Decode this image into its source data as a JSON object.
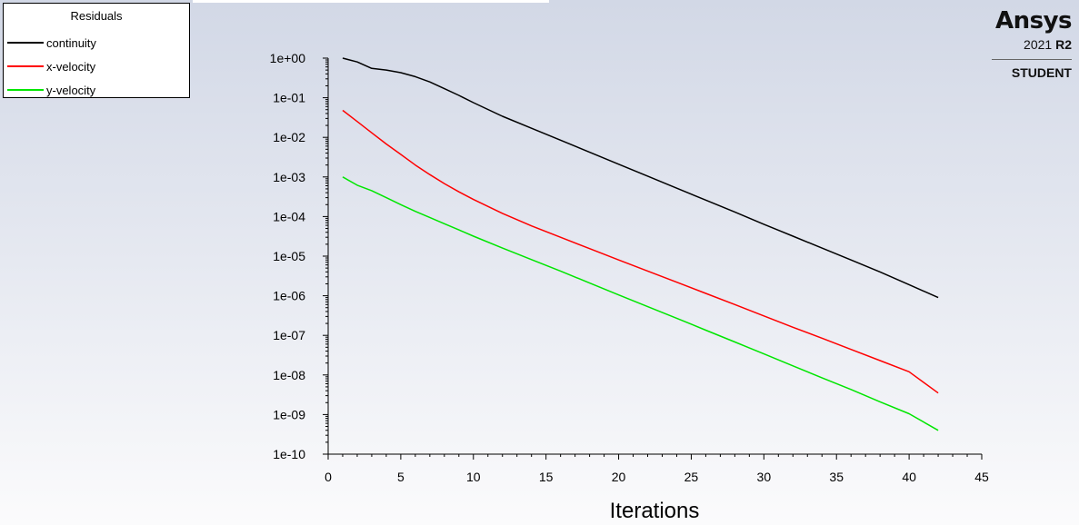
{
  "legend": {
    "title": "Residuals",
    "entries": [
      {
        "label": "continuity",
        "color": "#000000"
      },
      {
        "label": "x-velocity",
        "color": "#ff0000"
      },
      {
        "label": "y-velocity",
        "color": "#00e600"
      }
    ]
  },
  "logo": {
    "brand": "Ansys",
    "year": "2021",
    "release": "R2",
    "edition": "STUDENT"
  },
  "chart_data": {
    "type": "line",
    "title": "",
    "xlabel": "Iterations",
    "ylabel": "",
    "xlim": [
      0,
      45
    ],
    "ylim": [
      1e-10,
      1
    ],
    "yscale": "log",
    "grid": false,
    "legend_position": "top-left",
    "x_ticks": [
      "0",
      "5",
      "10",
      "15",
      "20",
      "25",
      "30",
      "35",
      "40",
      "45"
    ],
    "y_ticks": [
      "1e-10",
      "1e-09",
      "1e-08",
      "1e-07",
      "1e-06",
      "1e-05",
      "1e-04",
      "1e-03",
      "1e-02",
      "1e-01",
      "1e+00"
    ],
    "series": [
      {
        "name": "continuity",
        "color": "#000000",
        "x": [
          1,
          2,
          3,
          4,
          5,
          6,
          7,
          8,
          9,
          10,
          12,
          14,
          16,
          18,
          20,
          22,
          24,
          26,
          28,
          30,
          32,
          34,
          36,
          38,
          40,
          42
        ],
        "y": [
          1.0,
          0.8,
          0.55,
          0.5,
          0.43,
          0.34,
          0.25,
          0.17,
          0.115,
          0.075,
          0.034,
          0.017,
          0.0085,
          0.0042,
          0.0021,
          0.00105,
          0.00052,
          0.00026,
          0.00013,
          6.4e-05,
          3.2e-05,
          1.6e-05,
          8e-06,
          4e-06,
          1.9e-06,
          9e-07
        ]
      },
      {
        "name": "x-velocity",
        "color": "#ff0000",
        "x": [
          1,
          2,
          3,
          4,
          5,
          6,
          7,
          8,
          9,
          10,
          12,
          14,
          16,
          18,
          20,
          22,
          24,
          26,
          28,
          30,
          32,
          34,
          36,
          38,
          40,
          42
        ],
        "y": [
          0.048,
          0.025,
          0.013,
          0.0068,
          0.0037,
          0.002,
          0.00115,
          0.00068,
          0.00042,
          0.00027,
          0.00012,
          5.8e-05,
          3e-05,
          1.55e-05,
          8e-06,
          4.2e-06,
          2.2e-06,
          1.15e-06,
          6e-07,
          3.1e-07,
          1.6e-07,
          8.5e-08,
          4.4e-08,
          2.3e-08,
          1.2e-08,
          3.5e-09
        ]
      },
      {
        "name": "y-velocity",
        "color": "#00e600",
        "x": [
          1,
          2,
          3,
          4,
          5,
          6,
          7,
          8,
          9,
          10,
          12,
          14,
          16,
          18,
          20,
          22,
          24,
          26,
          28,
          30,
          32,
          34,
          36,
          38,
          40,
          42
        ],
        "y": [
          0.001,
          0.00062,
          0.00045,
          0.0003,
          0.0002,
          0.000135,
          9.5e-05,
          6.6e-05,
          4.6e-05,
          3.2e-05,
          1.6e-05,
          8.2e-06,
          4.2e-06,
          2.1e-06,
          1.05e-06,
          5.3e-07,
          2.7e-07,
          1.35e-07,
          6.8e-08,
          3.4e-08,
          1.7e-08,
          8.5e-09,
          4.3e-09,
          2.1e-09,
          1.05e-09,
          4e-10
        ]
      }
    ]
  }
}
